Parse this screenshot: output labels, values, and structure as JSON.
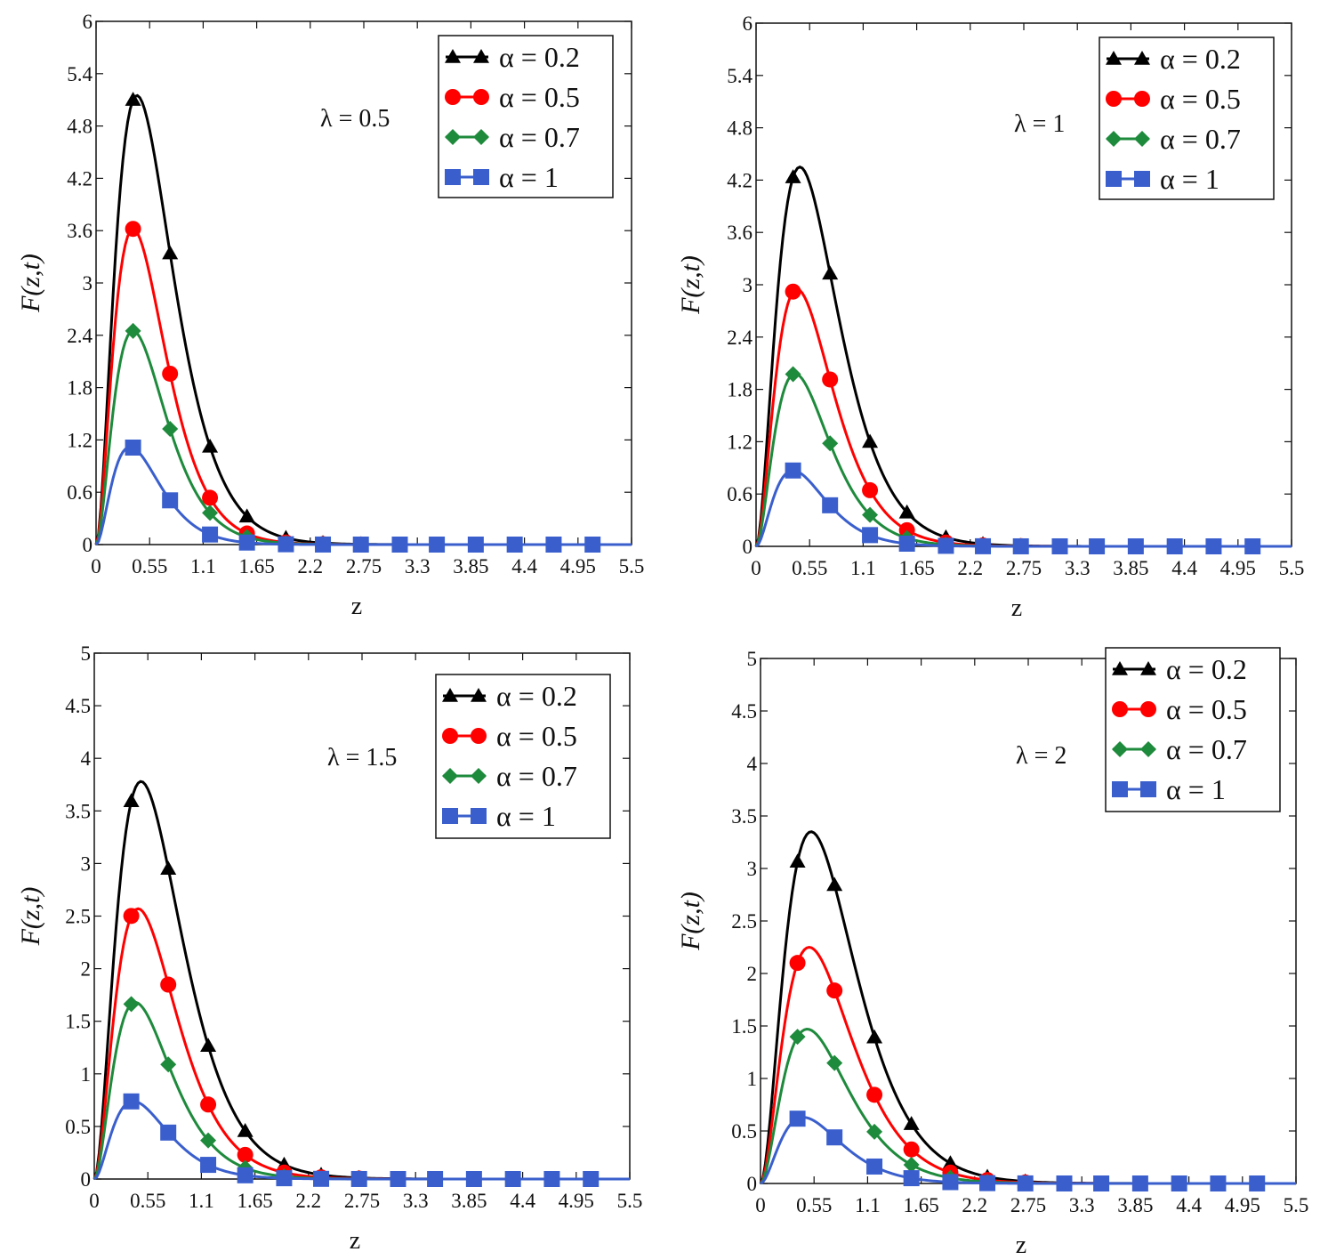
{
  "chart_data": [
    {
      "type": "line",
      "xlabel": "z",
      "ylabel": "F(z,t)",
      "annotation": "λ = 0.5",
      "xlim": [
        0,
        5.5
      ],
      "ylim": [
        0,
        6
      ],
      "xticks": [
        "0",
        "0.55",
        "1.1",
        "1.65",
        "2.2",
        "2.75",
        "3.3",
        "3.85",
        "4.4",
        "4.95",
        "5.5"
      ],
      "yticks": [
        "0",
        "0.6",
        "1.2",
        "1.8",
        "2.4",
        "3",
        "3.6",
        "4.2",
        "4.8",
        "5.4",
        "6"
      ],
      "grid": false,
      "legend": "top-right",
      "series": [
        {
          "name": "α = 0.2",
          "color": "#000000",
          "marker": "triangle",
          "peak": 5.15,
          "peak_x": 0.42,
          "markers_x": [
            0.38,
            0.76,
            1.17,
            1.55,
            1.95,
            2.33,
            2.72
          ]
        },
        {
          "name": "α = 0.5",
          "color": "#ff0000",
          "marker": "circle",
          "peak": 3.62,
          "peak_x": 0.38,
          "markers_x": [
            0.38,
            0.76,
            1.17,
            1.55,
            1.95,
            2.33,
            2.72
          ]
        },
        {
          "name": "α = 0.7",
          "color": "#1e8a3c",
          "marker": "diamond",
          "peak": 2.45,
          "peak_x": 0.38,
          "markers_x": [
            0.38,
            0.76,
            1.17,
            1.55,
            1.95,
            2.33,
            2.72
          ]
        },
        {
          "name": "α = 1",
          "color": "#3a5fcd",
          "marker": "square",
          "peak": 1.12,
          "peak_x": 0.35,
          "markers_x": [
            0.38,
            0.76,
            1.17,
            1.55,
            1.95,
            2.33,
            2.72,
            3.12,
            3.5,
            3.9,
            4.3,
            4.7,
            5.1
          ]
        }
      ]
    },
    {
      "type": "line",
      "xlabel": "z",
      "ylabel": "F(z,t)",
      "annotation": "λ = 1",
      "xlim": [
        0,
        5.5
      ],
      "ylim": [
        0,
        6
      ],
      "xticks": [
        "0",
        "0.55",
        "1.1",
        "1.65",
        "2.2",
        "2.75",
        "3.3",
        "3.85",
        "4.4",
        "4.95",
        "5.5"
      ],
      "yticks": [
        "0",
        "0.6",
        "1.2",
        "1.8",
        "2.4",
        "3",
        "3.6",
        "4.2",
        "4.8",
        "5.4",
        "6"
      ],
      "grid": false,
      "legend": "top-right",
      "series": [
        {
          "name": "α = 0.2",
          "color": "#000000",
          "marker": "triangle",
          "peak": 4.35,
          "peak_x": 0.45,
          "markers_x": [
            0.38,
            0.76,
            1.17,
            1.55,
            1.95,
            2.33,
            2.72
          ]
        },
        {
          "name": "α = 0.5",
          "color": "#ff0000",
          "marker": "circle",
          "peak": 2.95,
          "peak_x": 0.42,
          "markers_x": [
            0.38,
            0.76,
            1.17,
            1.55,
            1.95,
            2.33,
            2.72
          ]
        },
        {
          "name": "α = 0.7",
          "color": "#1e8a3c",
          "marker": "diamond",
          "peak": 1.98,
          "peak_x": 0.4,
          "markers_x": [
            0.38,
            0.76,
            1.17,
            1.55,
            1.95,
            2.33,
            2.72
          ]
        },
        {
          "name": "α = 1",
          "color": "#3a5fcd",
          "marker": "square",
          "peak": 0.87,
          "peak_x": 0.38,
          "markers_x": [
            0.38,
            0.76,
            1.17,
            1.55,
            1.95,
            2.33,
            2.72,
            3.12,
            3.5,
            3.9,
            4.3,
            4.7,
            5.1
          ]
        }
      ]
    },
    {
      "type": "line",
      "xlabel": "z",
      "ylabel": "F(z,t)",
      "annotation": "λ = 1.5",
      "xlim": [
        0,
        5.5
      ],
      "ylim": [
        0,
        5
      ],
      "xticks": [
        "0",
        "0.55",
        "1.1",
        "1.65",
        "2.2",
        "2.75",
        "3.3",
        "3.85",
        "4.4",
        "4.95",
        "5.5"
      ],
      "yticks": [
        "0",
        "0.5",
        "1",
        "1.5",
        "2",
        "2.5",
        "3",
        "3.5",
        "4",
        "4.5",
        "5"
      ],
      "grid": false,
      "legend": "top-right",
      "series": [
        {
          "name": "α = 0.2",
          "color": "#000000",
          "marker": "triangle",
          "peak": 3.78,
          "peak_x": 0.48,
          "markers_x": [
            0.38,
            0.76,
            1.17,
            1.55,
            1.95,
            2.33,
            2.72
          ]
        },
        {
          "name": "α = 0.5",
          "color": "#ff0000",
          "marker": "circle",
          "peak": 2.57,
          "peak_x": 0.45,
          "markers_x": [
            0.38,
            0.76,
            1.17,
            1.55,
            1.95,
            2.33,
            2.72
          ]
        },
        {
          "name": "α = 0.7",
          "color": "#1e8a3c",
          "marker": "diamond",
          "peak": 1.68,
          "peak_x": 0.42,
          "markers_x": [
            0.38,
            0.76,
            1.17,
            1.55,
            1.95,
            2.33,
            2.72
          ]
        },
        {
          "name": "α = 1",
          "color": "#3a5fcd",
          "marker": "square",
          "peak": 0.74,
          "peak_x": 0.4,
          "markers_x": [
            0.38,
            0.76,
            1.17,
            1.55,
            1.95,
            2.33,
            2.72,
            3.12,
            3.5,
            3.9,
            4.3,
            4.7,
            5.1
          ]
        }
      ]
    },
    {
      "type": "line",
      "xlabel": "z",
      "ylabel": "F(z,t)",
      "annotation": "λ = 2",
      "xlim": [
        0,
        5.5
      ],
      "ylim": [
        0,
        5
      ],
      "xticks": [
        "0",
        "0.55",
        "1.1",
        "1.65",
        "2.2",
        "2.75",
        "3.3",
        "3.85",
        "4.4",
        "4.95",
        "5.5"
      ],
      "yticks": [
        "0",
        "0.5",
        "1",
        "1.5",
        "2",
        "2.5",
        "3",
        "3.5",
        "4",
        "4.5",
        "5"
      ],
      "grid": false,
      "legend": "top-right",
      "series": [
        {
          "name": "α = 0.2",
          "color": "#000000",
          "marker": "triangle",
          "peak": 3.35,
          "peak_x": 0.52,
          "markers_x": [
            0.38,
            0.76,
            1.17,
            1.55,
            1.95,
            2.33,
            2.72
          ]
        },
        {
          "name": "α = 0.5",
          "color": "#ff0000",
          "marker": "circle",
          "peak": 2.25,
          "peak_x": 0.5,
          "markers_x": [
            0.38,
            0.76,
            1.17,
            1.55,
            1.95,
            2.33,
            2.72
          ]
        },
        {
          "name": "α = 0.7",
          "color": "#1e8a3c",
          "marker": "diamond",
          "peak": 1.47,
          "peak_x": 0.48,
          "markers_x": [
            0.38,
            0.76,
            1.17,
            1.55,
            1.95,
            2.33,
            2.72
          ]
        },
        {
          "name": "α = 1",
          "color": "#3a5fcd",
          "marker": "square",
          "peak": 0.63,
          "peak_x": 0.44,
          "markers_x": [
            0.38,
            0.76,
            1.17,
            1.55,
            1.95,
            2.33,
            2.72,
            3.12,
            3.5,
            3.9,
            4.3,
            4.7,
            5.1
          ]
        }
      ]
    }
  ]
}
